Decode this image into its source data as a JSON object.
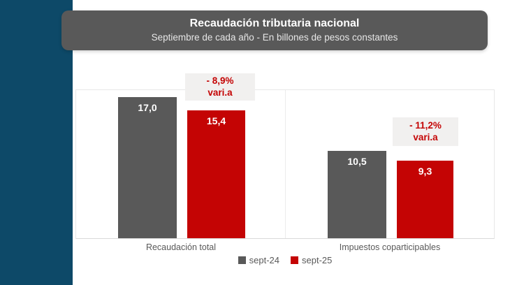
{
  "header": {
    "title": "Recaudación tributaria nacional",
    "subtitle": "Septiembre de cada año - En billones de pesos constantes"
  },
  "chart_data": {
    "type": "bar",
    "title": "Recaudación tributaria nacional",
    "subtitle": "Septiembre de cada año - En billones de pesos constantes",
    "categories": [
      "Recaudación total",
      "Impuestos coparticipables"
    ],
    "series": [
      {
        "name": "sept-24",
        "color": "#595959",
        "values": [
          17.0,
          10.5
        ]
      },
      {
        "name": "sept-25",
        "color": "#c40404",
        "values": [
          15.4,
          9.3
        ]
      }
    ],
    "value_labels": [
      [
        "17,0",
        "15,4"
      ],
      [
        "10,5",
        "9,3"
      ]
    ],
    "annotations": [
      {
        "line1": "- 8,9%",
        "line2": "vari.a",
        "category": "Recaudación total"
      },
      {
        "line1": "- 11,2%",
        "line2": "vari.a",
        "category": "Impuestos coparticipables"
      }
    ],
    "xlabel": "",
    "ylabel": "",
    "ylim": [
      0,
      18
    ],
    "grid": false,
    "legend_position": "bottom"
  },
  "legend": {
    "items": [
      {
        "label": "sept-24",
        "color": "#595959"
      },
      {
        "label": "sept-25",
        "color": "#c40404"
      }
    ]
  },
  "colors": {
    "sidebar_navy": "#0d4968",
    "header_gray": "#595959",
    "bar_gray": "#595959",
    "bar_red": "#c40404",
    "annotation_bg": "#f1f0ef",
    "annotation_text": "#c40404",
    "axis_line": "#d9d9d9",
    "label_text": "#595959"
  }
}
